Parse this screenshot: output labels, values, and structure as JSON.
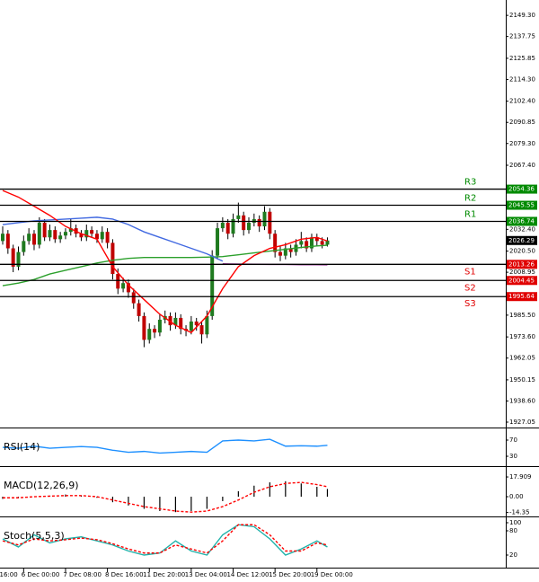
{
  "chart_data": [
    {
      "type": "candlestick",
      "candles": [
        [
          2026,
          2034,
          2024,
          2030
        ],
        [
          2030,
          2032,
          2019,
          2022
        ],
        [
          2022,
          2024,
          2009,
          2012
        ],
        [
          2012,
          2023,
          2010,
          2020
        ],
        [
          2020,
          2029,
          2018,
          2026
        ],
        [
          2026,
          2033,
          2024,
          2030
        ],
        [
          2030,
          2032,
          2021,
          2024
        ],
        [
          2024,
          2039,
          2022,
          2036
        ],
        [
          2036,
          2038,
          2026,
          2028
        ],
        [
          2028,
          2035,
          2026,
          2032
        ],
        [
          2032,
          2034,
          2025,
          2027
        ],
        [
          2027,
          2031,
          2025,
          2029
        ],
        [
          2029,
          2033,
          2027,
          2031
        ],
        [
          2031,
          2038,
          2029,
          2033
        ],
        [
          2033,
          2035,
          2028,
          2030
        ],
        [
          2030,
          2032,
          2026,
          2028
        ],
        [
          2028,
          2035,
          2026,
          2032
        ],
        [
          2032,
          2034,
          2028,
          2030
        ],
        [
          2030,
          2032,
          2025,
          2027
        ],
        [
          2027,
          2034,
          2025,
          2031
        ],
        [
          2031,
          2033,
          2022,
          2025
        ],
        [
          2025,
          2027,
          2005,
          2008
        ],
        [
          2008,
          2011,
          1997,
          2000
        ],
        [
          2000,
          2006,
          1998,
          2003
        ],
        [
          2003,
          2005,
          1995,
          1998
        ],
        [
          1998,
          2000,
          1989,
          1992
        ],
        [
          1992,
          1994,
          1982,
          1985
        ],
        [
          1985,
          1987,
          1968,
          1972
        ],
        [
          1972,
          1981,
          1970,
          1978
        ],
        [
          1978,
          1980,
          1973,
          1976
        ],
        [
          1976,
          1986,
          1974,
          1983
        ],
        [
          1983,
          1988,
          1981,
          1985
        ],
        [
          1985,
          1987,
          1977,
          1980
        ],
        [
          1980,
          1987,
          1978,
          1984
        ],
        [
          1984,
          1986,
          1975,
          1978
        ],
        [
          1978,
          1980,
          1974,
          1977
        ],
        [
          1977,
          1985,
          1975,
          1982
        ],
        [
          1982,
          1984,
          1977,
          1980
        ],
        [
          1980,
          1982,
          1970,
          1975
        ],
        [
          1975,
          1988,
          1973,
          1985
        ],
        [
          1985,
          2021,
          1983,
          2018
        ],
        [
          2018,
          2036,
          2016,
          2033
        ],
        [
          2033,
          2039,
          2031,
          2036
        ],
        [
          2036,
          2038,
          2027,
          2030
        ],
        [
          2030,
          2041,
          2028,
          2038
        ],
        [
          2038,
          2047,
          2036,
          2040
        ],
        [
          2040,
          2042,
          2029,
          2032
        ],
        [
          2032,
          2039,
          2030,
          2036
        ],
        [
          2036,
          2041,
          2034,
          2038
        ],
        [
          2038,
          2040,
          2031,
          2034
        ],
        [
          2034,
          2045,
          2032,
          2042
        ],
        [
          2042,
          2044,
          2027,
          2030
        ],
        [
          2030,
          2032,
          2017,
          2020
        ],
        [
          2020,
          2023,
          2015,
          2018
        ],
        [
          2018,
          2025,
          2016,
          2022
        ],
        [
          2022,
          2024,
          2017,
          2020
        ],
        [
          2020,
          2027,
          2018,
          2024
        ],
        [
          2024,
          2031,
          2022,
          2026
        ],
        [
          2026,
          2028,
          2020,
          2022
        ],
        [
          2022,
          2030,
          2020,
          2028
        ],
        [
          2028,
          2030,
          2023,
          2026
        ],
        [
          2026,
          2028,
          2022,
          2024
        ],
        [
          2024,
          2028,
          2023,
          2026.29
        ]
      ],
      "up_color": "#1f7a1f",
      "down_color": "#c00000",
      "x": [
        0,
        3,
        6,
        9,
        12,
        15,
        18,
        21,
        24,
        27,
        30,
        33,
        36,
        39,
        42,
        45,
        48,
        51,
        54,
        57,
        60,
        62
      ],
      "series": [
        {
          "color": "#2ca02c",
          "values": [
            2001.6,
            2003,
            2005,
            2008,
            2010,
            2012,
            2014,
            2015.5,
            2016.5,
            2017,
            2017,
            2017,
            2017,
            2017.2,
            2017.5,
            2018.5,
            2019.5,
            2020.5,
            2021.5,
            2022.5,
            2023.3,
            2023.7
          ]
        },
        {
          "color": "#4169e1",
          "values": [
            2035,
            2036,
            2037,
            2037.5,
            2038,
            2038.5,
            2039,
            2038,
            2035,
            2031,
            2028,
            2025,
            2022,
            2019,
            2015,
            null,
            null,
            null,
            null,
            null,
            null,
            null
          ]
        },
        {
          "color": "#800080",
          "values": [
            null,
            null,
            null,
            null,
            null,
            null,
            null,
            null,
            null,
            null,
            null,
            null,
            null,
            null,
            2013.5,
            2013.4,
            2013.3,
            2013.2,
            2013.2,
            2013.1,
            2013.1,
            2013.0
          ]
        },
        {
          "color": "#ff0000",
          "values": [
            2053.6,
            2050,
            2045,
            2040,
            2034,
            2030,
            2027,
            2012,
            2002,
            1994,
            1986,
            1980,
            1976,
            1985,
            2000,
            2012,
            2018,
            2022,
            2024,
            2027,
            2028,
            2026
          ]
        }
      ],
      "levels": [
        {
          "label": "R3",
          "value": 2054.36,
          "color": "#008a00"
        },
        {
          "label": "R2",
          "value": 2045.55,
          "color": "#008a00"
        },
        {
          "label": "R1",
          "value": 2036.74,
          "color": "#008a00"
        },
        {
          "label": "S1",
          "value": 2013.26,
          "color": "#e00000"
        },
        {
          "label": "S2",
          "value": 2004.45,
          "color": "#e00000"
        },
        {
          "label": "S3",
          "value": 1995.64,
          "color": "#e00000"
        }
      ],
      "last": 2026.29,
      "ylim": [
        1924.1,
        2157.7
      ],
      "yticks": [
        {
          "value": 2149.3,
          "label": "2149.30"
        },
        2137.75,
        2125.85,
        {
          "value": 2114.3,
          "label": "2114.30"
        },
        {
          "value": 2102.4,
          "label": "2102.40"
        },
        2090.85,
        {
          "value": 2079.3,
          "label": "2079.30"
        },
        {
          "value": 2067.4,
          "label": "2067.40"
        },
        {
          "value": 2032.4,
          "label": "2032.40"
        },
        {
          "value": 2020.5,
          "label": "2020.50"
        },
        2008.95,
        {
          "value": 1985.5,
          "label": "1985.50"
        },
        {
          "value": 1973.6,
          "label": "1973.60"
        },
        1962.05,
        1950.15,
        {
          "value": 1938.6,
          "label": "1938.60"
        },
        1927.05
      ],
      "xticks": [
        {
          "value": -4,
          "label": "16:00"
        },
        {
          "value": 4,
          "label": "6 Dec 00:00"
        },
        {
          "value": 12,
          "label": "7 Dec 08:00"
        },
        {
          "value": 20,
          "label": "8 Dec 16:00"
        },
        {
          "value": 28,
          "label": "11 Dec 20:00"
        },
        {
          "value": 36,
          "label": "13 Dec 04:00"
        },
        {
          "value": 44,
          "label": "14 Dec 12:00"
        },
        {
          "value": 52,
          "label": "15 Dec 20:00"
        },
        {
          "value": 60,
          "label": "19 Dec 00:00"
        }
      ]
    },
    {
      "type": "line",
      "title": "RSI(14)",
      "x": [
        0,
        3,
        6,
        9,
        12,
        15,
        18,
        21,
        24,
        27,
        30,
        33,
        36,
        39,
        42,
        45,
        48,
        51,
        54,
        57,
        60,
        62
      ],
      "series": [
        {
          "color": "#1e90ff",
          "values": [
            52,
            50,
            55,
            50,
            52,
            54,
            52,
            45,
            40,
            42,
            38,
            40,
            42,
            40,
            68,
            70,
            68,
            72,
            55,
            56,
            55,
            57
          ]
        }
      ],
      "ylim": [
        5.6,
        98.9
      ],
      "yticks": [
        70,
        30
      ]
    },
    {
      "type": "line",
      "title": "MACD(12,26,9)",
      "x": [
        0,
        3,
        6,
        9,
        12,
        15,
        18,
        21,
        24,
        27,
        30,
        33,
        36,
        39,
        42,
        45,
        48,
        51,
        54,
        57,
        60,
        62
      ],
      "series": [
        {
          "color": "#a9a9a9",
          "style": "histogram",
          "values": [
            -2,
            -1,
            0,
            1,
            2,
            1,
            -1,
            -5,
            -8,
            -11,
            -13,
            -14,
            -13,
            -11,
            -4,
            5,
            10,
            13,
            14,
            12,
            9,
            7
          ]
        },
        {
          "color": "#ff0000",
          "style": "dashed",
          "values": [
            -1,
            -1,
            0,
            0.5,
            1,
            1,
            0,
            -3,
            -6,
            -9,
            -11,
            -13,
            -14,
            -13,
            -9,
            -3,
            4,
            9,
            12,
            13,
            11,
            9
          ]
        }
      ],
      "ylim": [
        -17.9,
        26.9
      ],
      "yticks": [
        17.909,
        {
          "value": 0,
          "label": "0.00"
        },
        -14.35
      ]
    },
    {
      "type": "line",
      "title": "Stoch(5,5,3)",
      "x": [
        0,
        3,
        6,
        9,
        12,
        15,
        18,
        21,
        24,
        27,
        30,
        33,
        36,
        39,
        42,
        45,
        48,
        51,
        54,
        57,
        60,
        62
      ],
      "series": [
        {
          "color": "#20b2aa",
          "values": [
            60,
            40,
            70,
            50,
            60,
            65,
            55,
            45,
            30,
            20,
            25,
            55,
            30,
            20,
            70,
            95,
            90,
            60,
            20,
            35,
            55,
            40
          ]
        },
        {
          "color": "#ff0000",
          "style": "dashed",
          "values": [
            55,
            45,
            60,
            55,
            58,
            62,
            58,
            48,
            35,
            25,
            25,
            45,
            35,
            25,
            55,
            95,
            95,
            70,
            30,
            30,
            50,
            45
          ]
        }
      ],
      "ylim": [
        -11.1,
        113.3
      ],
      "yticks": [
        100,
        80,
        20
      ]
    }
  ]
}
